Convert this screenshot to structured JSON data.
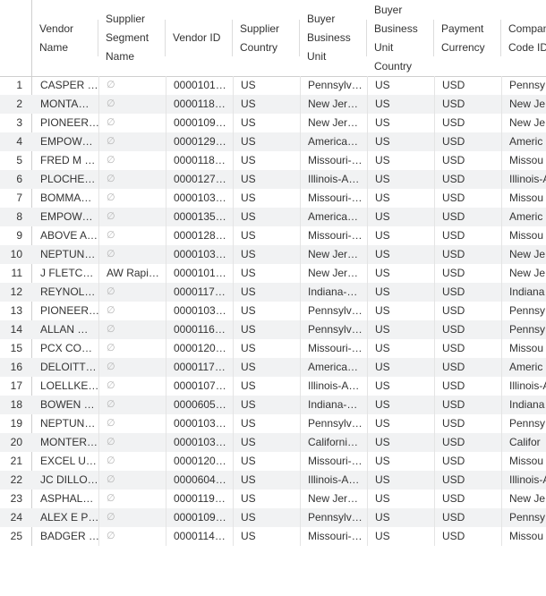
{
  "columns": [
    {
      "key": "vendor_name",
      "label": "Vendor\nName"
    },
    {
      "key": "segment",
      "label": "Supplier\nSegment\nName"
    },
    {
      "key": "vendor_id",
      "label": "Vendor ID"
    },
    {
      "key": "country",
      "label": "Supplier\nCountry"
    },
    {
      "key": "bu",
      "label": "Buyer\nBusiness\nUnit"
    },
    {
      "key": "bu_country",
      "label": "Buyer\nBusiness\nUnit\nCountry"
    },
    {
      "key": "currency",
      "label": "Payment\nCurrency"
    },
    {
      "key": "company",
      "label": "Company\nCode ID"
    }
  ],
  "null_symbol": "∅",
  "rows": [
    {
      "n": "1",
      "vendor_name": "CASPER …",
      "segment": null,
      "vendor_id": "0000101…",
      "country": "US",
      "bu": "Pennsylv…",
      "bu_country": "US",
      "currency": "USD",
      "company": "Pennsy"
    },
    {
      "n": "2",
      "vendor_name": "MONTA…",
      "segment": null,
      "vendor_id": "0000118…",
      "country": "US",
      "bu": "New Jer…",
      "bu_country": "US",
      "currency": "USD",
      "company": "New Je"
    },
    {
      "n": "3",
      "vendor_name": "PIONEER…",
      "segment": null,
      "vendor_id": "0000109…",
      "country": "US",
      "bu": "New Jer…",
      "bu_country": "US",
      "currency": "USD",
      "company": "New Je"
    },
    {
      "n": "4",
      "vendor_name": "EMPOW…",
      "segment": null,
      "vendor_id": "0000129…",
      "country": "US",
      "bu": "America…",
      "bu_country": "US",
      "currency": "USD",
      "company": "Americ"
    },
    {
      "n": "5",
      "vendor_name": "FRED M …",
      "segment": null,
      "vendor_id": "0000118…",
      "country": "US",
      "bu": "Missouri-…",
      "bu_country": "US",
      "currency": "USD",
      "company": "Missou"
    },
    {
      "n": "6",
      "vendor_name": "PLOCHE…",
      "segment": null,
      "vendor_id": "0000127…",
      "country": "US",
      "bu": "Illinois-A…",
      "bu_country": "US",
      "currency": "USD",
      "company": "Illinois-A"
    },
    {
      "n": "7",
      "vendor_name": "BOMMA…",
      "segment": null,
      "vendor_id": "0000103…",
      "country": "US",
      "bu": "Missouri-…",
      "bu_country": "US",
      "currency": "USD",
      "company": "Missou"
    },
    {
      "n": "8",
      "vendor_name": "EMPOW…",
      "segment": null,
      "vendor_id": "0000135…",
      "country": "US",
      "bu": "America…",
      "bu_country": "US",
      "currency": "USD",
      "company": "Americ"
    },
    {
      "n": "9",
      "vendor_name": "ABOVE A…",
      "segment": null,
      "vendor_id": "0000128…",
      "country": "US",
      "bu": "Missouri-…",
      "bu_country": "US",
      "currency": "USD",
      "company": "Missou"
    },
    {
      "n": "10",
      "vendor_name": "NEPTUN…",
      "segment": null,
      "vendor_id": "0000103…",
      "country": "US",
      "bu": "New Jer…",
      "bu_country": "US",
      "currency": "USD",
      "company": "New Je"
    },
    {
      "n": "11",
      "vendor_name": "J FLETC…",
      "segment": "AW Rapi…",
      "vendor_id": "0000101…",
      "country": "US",
      "bu": "New Jer…",
      "bu_country": "US",
      "currency": "USD",
      "company": "New Je"
    },
    {
      "n": "12",
      "vendor_name": "REYNOL…",
      "segment": null,
      "vendor_id": "0000117…",
      "country": "US",
      "bu": "Indiana-…",
      "bu_country": "US",
      "currency": "USD",
      "company": "Indiana"
    },
    {
      "n": "13",
      "vendor_name": "PIONEER…",
      "segment": null,
      "vendor_id": "0000103…",
      "country": "US",
      "bu": "Pennsylv…",
      "bu_country": "US",
      "currency": "USD",
      "company": "Pennsy"
    },
    {
      "n": "14",
      "vendor_name": "ALLAN …",
      "segment": null,
      "vendor_id": "0000116…",
      "country": "US",
      "bu": "Pennsylv…",
      "bu_country": "US",
      "currency": "USD",
      "company": "Pennsy"
    },
    {
      "n": "15",
      "vendor_name": "PCX CO…",
      "segment": null,
      "vendor_id": "0000120…",
      "country": "US",
      "bu": "Missouri-…",
      "bu_country": "US",
      "currency": "USD",
      "company": "Missou"
    },
    {
      "n": "16",
      "vendor_name": "DELOITT…",
      "segment": null,
      "vendor_id": "0000117…",
      "country": "US",
      "bu": "America…",
      "bu_country": "US",
      "currency": "USD",
      "company": "Americ"
    },
    {
      "n": "17",
      "vendor_name": "LOELLKE…",
      "segment": null,
      "vendor_id": "0000107…",
      "country": "US",
      "bu": "Illinois-A…",
      "bu_country": "US",
      "currency": "USD",
      "company": "Illinois-A"
    },
    {
      "n": "18",
      "vendor_name": "BOWEN …",
      "segment": null,
      "vendor_id": "0000605…",
      "country": "US",
      "bu": "Indiana-…",
      "bu_country": "US",
      "currency": "USD",
      "company": "Indiana"
    },
    {
      "n": "19",
      "vendor_name": "NEPTUN…",
      "segment": null,
      "vendor_id": "0000103…",
      "country": "US",
      "bu": "Pennsylv…",
      "bu_country": "US",
      "currency": "USD",
      "company": "Pennsy"
    },
    {
      "n": "20",
      "vendor_name": "MONTER…",
      "segment": null,
      "vendor_id": "0000103…",
      "country": "US",
      "bu": "Californi…",
      "bu_country": "US",
      "currency": "USD",
      "company": "Califor"
    },
    {
      "n": "21",
      "vendor_name": "EXCEL U…",
      "segment": null,
      "vendor_id": "0000120…",
      "country": "US",
      "bu": "Missouri-…",
      "bu_country": "US",
      "currency": "USD",
      "company": "Missou"
    },
    {
      "n": "22",
      "vendor_name": "JC DILLO…",
      "segment": null,
      "vendor_id": "0000604…",
      "country": "US",
      "bu": "Illinois-A…",
      "bu_country": "US",
      "currency": "USD",
      "company": "Illinois-A"
    },
    {
      "n": "23",
      "vendor_name": "ASPHAL…",
      "segment": null,
      "vendor_id": "0000119…",
      "country": "US",
      "bu": "New Jer…",
      "bu_country": "US",
      "currency": "USD",
      "company": "New Je"
    },
    {
      "n": "24",
      "vendor_name": "ALEX E P…",
      "segment": null,
      "vendor_id": "0000109…",
      "country": "US",
      "bu": "Pennsylv…",
      "bu_country": "US",
      "currency": "USD",
      "company": "Pennsy"
    },
    {
      "n": "25",
      "vendor_name": "BADGER …",
      "segment": null,
      "vendor_id": "0000114…",
      "country": "US",
      "bu": "Missouri-…",
      "bu_country": "US",
      "currency": "USD",
      "company": "Missou"
    }
  ]
}
